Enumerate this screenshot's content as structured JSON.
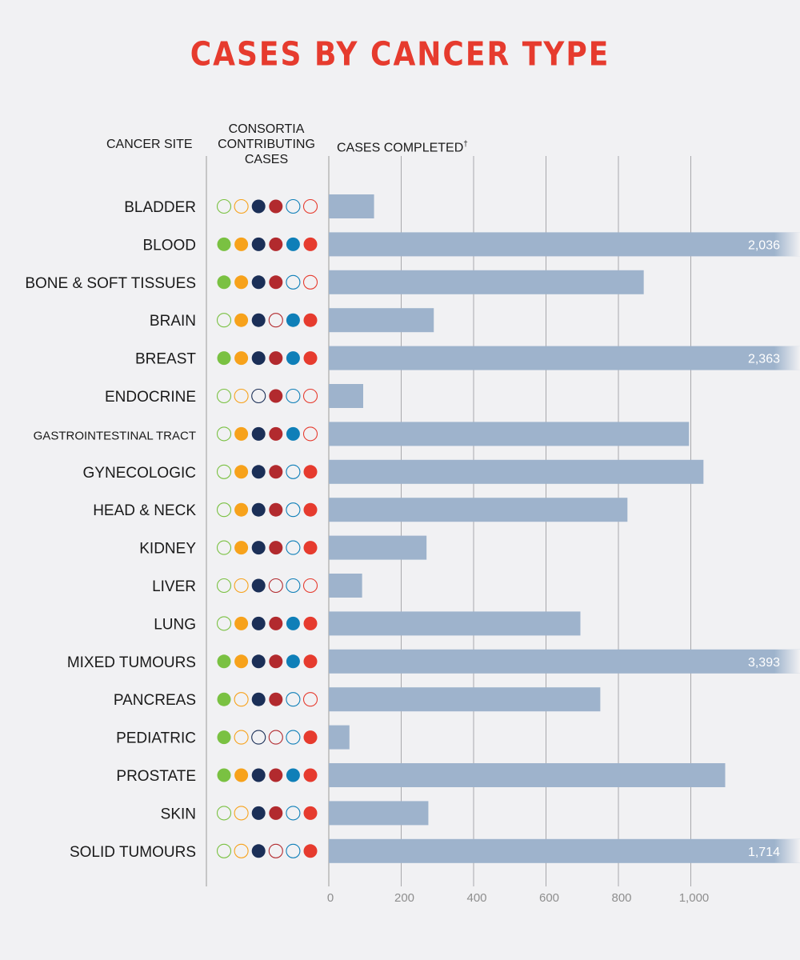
{
  "chart_data": {
    "type": "bar",
    "title": "CASES BY CANCER TYPE",
    "column_headers": {
      "site": "CANCER SITE",
      "consortia": [
        "CONSORTIA",
        "CONTRIBUTING",
        "CASES"
      ],
      "cases": "CASES COMPLETED",
      "cases_mark": "†"
    },
    "x_ticks": [
      "0",
      "200",
      "400",
      "600",
      "800",
      "1,000"
    ],
    "xlim": [
      0,
      1200
    ],
    "grid": true,
    "consortia_colors": [
      "#7ac142",
      "#f7a21b",
      "#1b2f57",
      "#b22a2e",
      "#0f7fb8",
      "#e63b2e"
    ],
    "bar_color": "#9eb3cc",
    "categories": [
      "BLADDER",
      "BLOOD",
      "BONE & SOFT TISSUES",
      "BRAIN",
      "BREAST",
      "ENDOCRINE",
      "GASTROINTESTINAL TRACT",
      "GYNECOLOGIC",
      "HEAD & NECK",
      "KIDNEY",
      "LIVER",
      "LUNG",
      "MIXED TUMOURS",
      "PANCREAS",
      "PEDIATRIC",
      "PROSTATE",
      "SKIN",
      "SOLID TUMOURS"
    ],
    "values": [
      125,
      2036,
      870,
      290,
      2363,
      95,
      995,
      1035,
      825,
      270,
      92,
      695,
      3393,
      750,
      57,
      1095,
      275,
      1714
    ],
    "value_labels": [
      "",
      "2,036",
      "",
      "",
      "2,363",
      "",
      "",
      "",
      "",
      "",
      "",
      "",
      "3,393",
      "",
      "",
      "",
      "",
      "1,714"
    ],
    "consortia": [
      [
        0,
        0,
        1,
        1,
        0,
        0
      ],
      [
        1,
        1,
        1,
        1,
        1,
        1
      ],
      [
        1,
        1,
        1,
        1,
        0,
        0
      ],
      [
        0,
        1,
        1,
        0,
        1,
        1
      ],
      [
        1,
        1,
        1,
        1,
        1,
        1
      ],
      [
        0,
        0,
        0,
        1,
        0,
        0
      ],
      [
        0,
        1,
        1,
        1,
        1,
        0
      ],
      [
        0,
        1,
        1,
        1,
        0,
        1
      ],
      [
        0,
        1,
        1,
        1,
        0,
        1
      ],
      [
        0,
        1,
        1,
        1,
        0,
        1
      ],
      [
        0,
        0,
        1,
        0,
        0,
        0
      ],
      [
        0,
        1,
        1,
        1,
        1,
        1
      ],
      [
        1,
        1,
        1,
        1,
        1,
        1
      ],
      [
        1,
        0,
        1,
        1,
        0,
        0
      ],
      [
        1,
        0,
        0,
        0,
        0,
        1
      ],
      [
        1,
        1,
        1,
        1,
        1,
        1
      ],
      [
        0,
        0,
        1,
        1,
        0,
        1
      ],
      [
        0,
        0,
        1,
        0,
        0,
        1
      ]
    ]
  }
}
